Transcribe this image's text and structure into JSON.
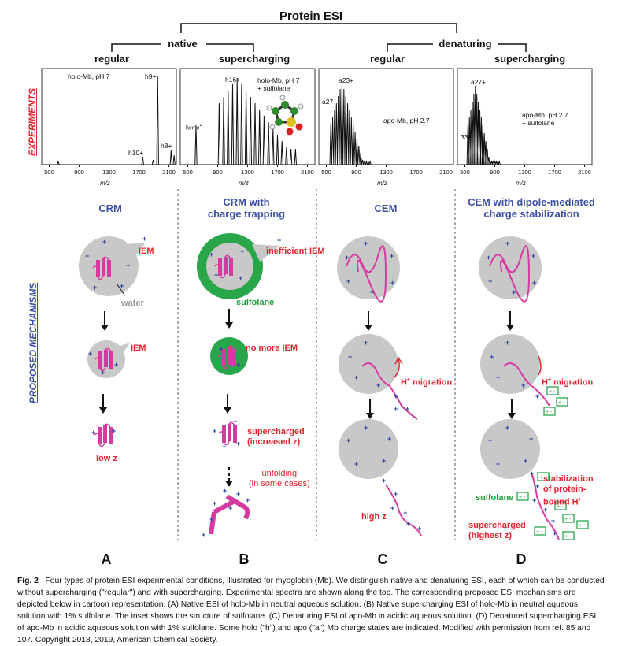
{
  "header": {
    "title": "Protein ESI",
    "native": "native",
    "denaturing": "denaturing",
    "regular": "regular",
    "supercharging": "supercharging"
  },
  "side_labels": {
    "experiments": "EXPERIMENTS",
    "mechanisms": "PROPOSED MECHANISMS"
  },
  "spectra": [
    {
      "label": "holo-Mb, pH 7",
      "peaks": [
        "h9+",
        "h10+",
        "h8+"
      ],
      "ticks": [
        "500",
        "900",
        "1300",
        "1700",
        "2100"
      ],
      "xlabel": "m/z"
    },
    {
      "label": "holo-Mb, pH 7\n+ sulfolane",
      "peaks": [
        "h16+",
        "heme"
      ],
      "heme_sup": "+",
      "ticks": [
        "500",
        "900",
        "1300",
        "1700",
        "2100"
      ],
      "xlabel": "m/z"
    },
    {
      "label": "apo-Mb, pH 2.7",
      "peaks": [
        "a23+",
        "a27+"
      ],
      "ticks": [
        "500",
        "900",
        "1300",
        "1700",
        "2100"
      ],
      "xlabel": "m/z"
    },
    {
      "label": "apo-Mb, pH 2.7\n+ sulfolane",
      "peaks": [
        "a27+",
        "33+"
      ],
      "ticks": [
        "500",
        "900",
        "1300",
        "1700",
        "2100"
      ],
      "xlabel": "m/z"
    }
  ],
  "mechanisms": {
    "A": {
      "title": "CRM",
      "iem1": "IEM",
      "water": "water",
      "iem2": "IEM",
      "result": "low z"
    },
    "B": {
      "title1": "CRM with",
      "title2": "charge trapping",
      "iem1": "inefficient IEM",
      "sulfolane": "sulfolane",
      "iem2": "no more IEM",
      "sc1": "supercharged",
      "sc2": "(increased z)",
      "unf1": "unfolding",
      "unf2": "(in some cases)"
    },
    "C": {
      "title": "CEM",
      "migration": "H",
      "migration_sup": "+",
      "migration_rest": " migration",
      "result": "high z"
    },
    "D": {
      "title1": "CEM with dipole-mediated",
      "title2": "charge stabilization",
      "migration": "H",
      "migration_sup": "+",
      "migration_rest": " migration",
      "stab1": "stabilization",
      "stab2": "of protein-",
      "stab3": "bound H",
      "stab_sup": "+",
      "sulfolane": "sulfolane",
      "sc1": "supercharged",
      "sc2": "(highest z)"
    }
  },
  "panel_letters": [
    "A",
    "B",
    "C",
    "D"
  ],
  "caption": {
    "label": "Fig. 2",
    "text": "Four types of protein ESI experimental conditions, illustrated for myoglobin (Mb). We distinguish native and denaturing ESI, each of which can be conducted without supercharging (\"regular\") and with supercharging. Experimental spectra are shown along the top. The corresponding proposed ESI mechanisms are depicted below in cartoon representation. (A) Native ESI of holo-Mb in neutral aqueous solution. (B) Native supercharging ESI of holo-Mb in neutral aqueous solution with 1% sulfolane. The inset shows the structure of sulfolane. (C) Denaturing ESI of apo-Mb in acidic aqueous solution. (D) Denatured supercharging ESI of apo-Mb in acidic aqueous solution with 1% sulfolane. Some holo (\"h\") and apo (\"a\") Mb charge states are indicated. Modified with permission from ref. 85 and 107. Copyright 2018, 2019, American Chemical Society."
  },
  "colors": {
    "protein": "#d63aa0",
    "droplet": "#c8c8c8",
    "sulfolane": "#2aa64a",
    "mechanism_title": "#3b4fa6",
    "label_red": "#e0262e",
    "charge": "#2b3f9e"
  }
}
